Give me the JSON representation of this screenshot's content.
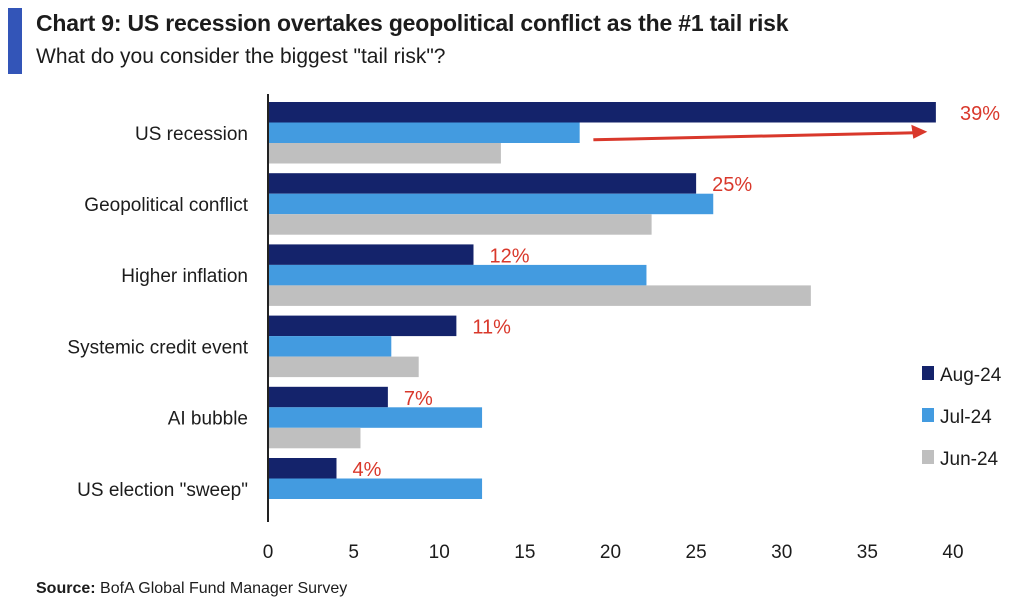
{
  "header": {
    "title": "Chart 9: US recession overtakes geopolitical conflict as the #1 tail risk",
    "subtitle": "What do you consider the biggest \"tail risk\"?",
    "accent_color": "#3355b8"
  },
  "footer": {
    "source_label": "Source:",
    "source_text": " BofA Global Fund Manager Survey"
  },
  "chart_data": {
    "type": "bar",
    "orientation": "horizontal",
    "title": "",
    "xlabel": "",
    "ylabel": "",
    "xlim": [
      0,
      40
    ],
    "xticks": [
      0,
      5,
      10,
      15,
      20,
      25,
      30,
      35,
      40
    ],
    "categories": [
      "US recession",
      "Geopolitical conflict",
      "Higher inflation",
      "Systemic credit event",
      "AI bubble",
      "US election \"sweep\""
    ],
    "series": [
      {
        "name": "Aug-24",
        "color": "#14236b",
        "values": [
          39,
          25,
          12,
          11,
          7,
          4
        ]
      },
      {
        "name": "Jul-24",
        "color": "#439be0",
        "values": [
          18.2,
          26,
          22.1,
          7.2,
          12.5,
          12.5
        ]
      },
      {
        "name": "Jun-24",
        "color": "#bfbfbf",
        "values": [
          13.6,
          22.4,
          31.7,
          8.8,
          5.4,
          null
        ]
      }
    ],
    "data_labels": [
      "39%",
      "25%",
      "12%",
      "11%",
      "7%",
      "4%"
    ],
    "data_label_color": "#d9382b",
    "annotation": {
      "type": "arrow",
      "from_value": 19,
      "to_value": 38.5,
      "category": "US recession",
      "color": "#d9382b"
    },
    "legend_position": "right",
    "grid": false
  }
}
